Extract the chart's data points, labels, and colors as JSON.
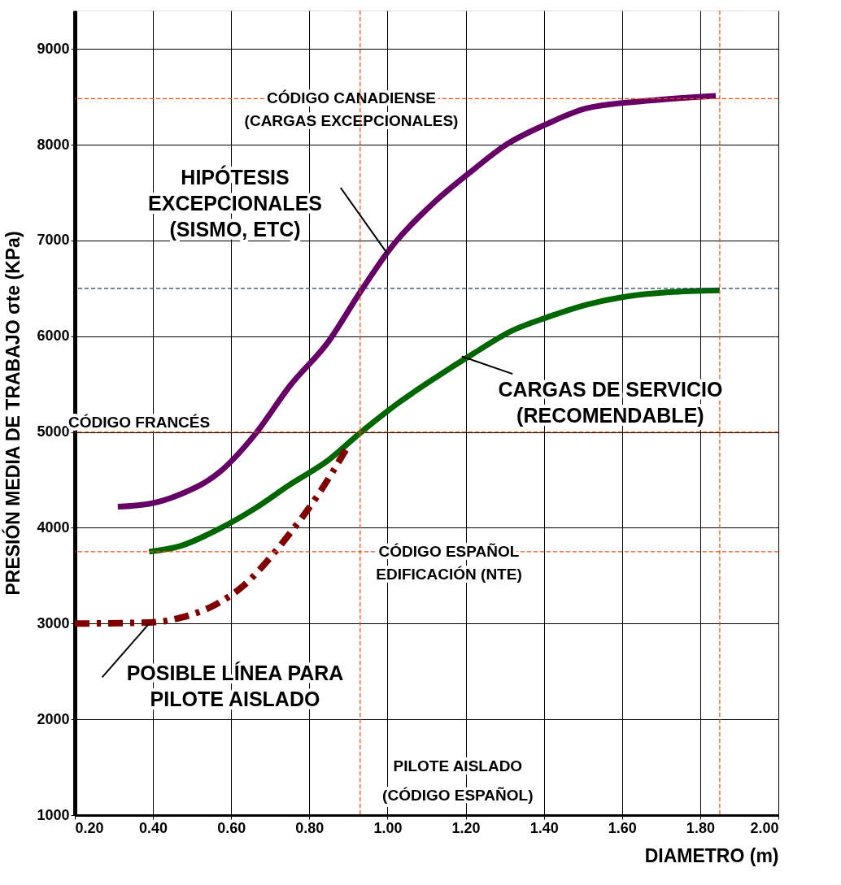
{
  "chart_data": {
    "type": "line",
    "xlabel": "DIAMETRO (m)",
    "ylabel": "PRESIÓN MEDIA DE TRABAJO σte (KPa)",
    "xlim": [
      0.2,
      2.0
    ],
    "ylim": [
      1000,
      9400
    ],
    "xticks": [
      {
        "value": 0.2,
        "label": "0.20"
      },
      {
        "value": 0.4,
        "label": "0.40"
      },
      {
        "value": 0.6,
        "label": "0.60"
      },
      {
        "value": 0.8,
        "label": "0.80"
      },
      {
        "value": 1.0,
        "label": "1.00"
      },
      {
        "value": 1.2,
        "label": "1.20"
      },
      {
        "value": 1.4,
        "label": "1.40"
      },
      {
        "value": 1.6,
        "label": "1.60"
      },
      {
        "value": 1.8,
        "label": "1.80"
      },
      {
        "value": 2.0,
        "label": "2.00"
      }
    ],
    "yticks": [
      1000,
      2000,
      3000,
      4000,
      5000,
      6000,
      7000,
      8000,
      9000
    ],
    "grid": true,
    "series": [
      {
        "color": "#660066",
        "line_style": "solid",
        "x": [
          0.31,
          0.39,
          0.47,
          0.57,
          0.66,
          0.75,
          0.85,
          0.93,
          1.01,
          1.12,
          1.22,
          1.3,
          1.41,
          1.51,
          1.67,
          1.84
        ],
        "values": [
          4220,
          4250,
          4350,
          4580,
          4970,
          5480,
          5950,
          6460,
          6930,
          7400,
          7740,
          7990,
          8220,
          8380,
          8460,
          8510
        ]
      },
      {
        "color": "#006600",
        "line_style": "solid",
        "x": [
          0.39,
          0.47,
          0.57,
          0.66,
          0.75,
          0.85,
          0.93,
          1.03,
          1.12,
          1.22,
          1.32,
          1.41,
          1.51,
          1.62,
          1.72,
          1.85
        ],
        "values": [
          3750,
          3810,
          3990,
          4200,
          4450,
          4710,
          4990,
          5310,
          5560,
          5820,
          6060,
          6200,
          6330,
          6420,
          6460,
          6480
        ]
      },
      {
        "color": "#800000",
        "line_style": "dashed",
        "x": [
          0.2,
          0.39,
          0.47,
          0.57,
          0.63,
          0.7,
          0.75,
          0.82,
          0.9
        ],
        "values": [
          3000,
          3010,
          3060,
          3220,
          3390,
          3690,
          3940,
          4330,
          4860
        ]
      }
    ],
    "ref_lines": [
      {
        "axis": "y",
        "value": 8480,
        "label": "CÓDIGO CANADIENSE\n(CARGAS EXCEPCIONALES)",
        "color": "#ff4500",
        "line_style": "dashed"
      },
      {
        "axis": "y",
        "value": 6500,
        "color": "#1f3f7f",
        "line_style": "dashed"
      },
      {
        "axis": "y",
        "value": 5000,
        "label": "CÓDIGO FRANCÉS",
        "color": "#ff4500",
        "line_style": "dashed"
      },
      {
        "axis": "y",
        "value": 3750,
        "label": "CÓDIGO ESPAÑOL\nEDIFICACIÓN (NTE)",
        "color": "#ff4500",
        "line_style": "dashed"
      },
      {
        "axis": "x",
        "value": 0.93,
        "label": "PILOTE AISLADO\n(CÓDIGO ESPAÑOL)",
        "color": "#ff4500",
        "line_style": "dashed"
      },
      {
        "axis": "x",
        "value": 1.85,
        "color": "#ff4500",
        "line_style": "dashed"
      }
    ],
    "annotations": [
      {
        "text": "HIPÓTESIS\nEXCEPCIONALES\n(SISMO, ETC)",
        "x": 1.0,
        "y": 6860
      },
      {
        "text": "CARGAS DE SERVICIO\n(RECOMENDABLE)",
        "x": 1.19,
        "y": 5790
      },
      {
        "text": "POSIBLE LÍNEA PARA\nPILOTE AISLADO",
        "x": 0.39,
        "y": 3000
      }
    ]
  }
}
